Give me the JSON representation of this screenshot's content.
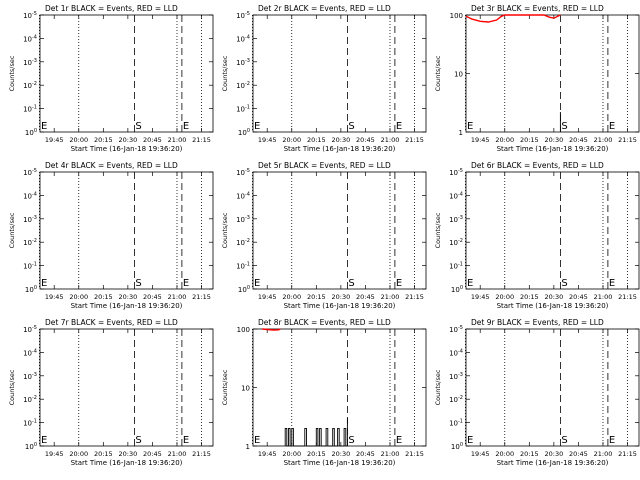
{
  "colors": {
    "black": "#000000",
    "red": "#ff0000",
    "background": "#ffffff"
  },
  "time_ticks": [
    "19:45",
    "20:00",
    "20:15",
    "20:30",
    "20:45",
    "21:00",
    "21:15"
  ],
  "panels": [
    {
      "title": "Det 1r BLACK = Events, RED = LLD",
      "ylabel": "Counts/sec",
      "xlabel": "Start Time (16-Jan-18 19:36:20)",
      "yscale": "exponent",
      "yticks": [
        {
          "base": "10",
          "exp": "0"
        },
        {
          "base": "10",
          "exp": "-1"
        },
        {
          "base": "10",
          "exp": "-2"
        },
        {
          "base": "10",
          "exp": "-3"
        },
        {
          "base": "10",
          "exp": "-4"
        },
        {
          "base": "10",
          "exp": "-5"
        }
      ],
      "markers": [
        {
          "label": "E",
          "time": "19:36"
        },
        {
          "label": "S",
          "time": "20:34"
        },
        {
          "label": "E",
          "time": "21:03"
        }
      ],
      "events": [],
      "lld": []
    },
    {
      "title": "Det 2r BLACK = Events, RED = LLD",
      "ylabel": "Counts/sec",
      "xlabel": "Start Time (16-Jan-18 19:36:20)",
      "yscale": "exponent",
      "yticks": [
        {
          "base": "10",
          "exp": "0"
        },
        {
          "base": "10",
          "exp": "-1"
        },
        {
          "base": "10",
          "exp": "-2"
        },
        {
          "base": "10",
          "exp": "-3"
        },
        {
          "base": "10",
          "exp": "-4"
        },
        {
          "base": "10",
          "exp": "-5"
        }
      ],
      "markers": [
        {
          "label": "E",
          "time": "19:36"
        },
        {
          "label": "S",
          "time": "20:34"
        },
        {
          "label": "E",
          "time": "21:03"
        }
      ],
      "events": [],
      "lld": []
    },
    {
      "title": "Det 3r BLACK = Events, RED = LLD",
      "ylabel": "Counts/sec",
      "xlabel": "Start Time (16-Jan-18 19:36:20)",
      "yscale": "log",
      "yticks": [
        {
          "base": "100",
          "exp": ""
        },
        {
          "base": "10",
          "exp": ""
        },
        {
          "base": "1",
          "exp": ""
        }
      ],
      "markers": [
        {
          "label": "E",
          "time": "19:36"
        },
        {
          "label": "S",
          "time": "20:34"
        },
        {
          "label": "E",
          "time": "21:03"
        }
      ],
      "events": [
        [
          "20:34",
          1
        ],
        [
          "20:34",
          1.6
        ],
        [
          "20:34",
          2.2
        ],
        [
          "20:34",
          1
        ]
      ],
      "lld": [
        [
          "19:36",
          95
        ],
        [
          "19:40",
          85
        ],
        [
          "19:45",
          78
        ],
        [
          "19:50",
          76
        ],
        [
          "19:55",
          82
        ],
        [
          "19:58",
          95
        ],
        [
          "20:00",
          100
        ],
        [
          "20:24",
          100
        ],
        [
          "20:27",
          92
        ],
        [
          "20:30",
          88
        ],
        [
          "20:33",
          97
        ],
        [
          "20:34",
          100
        ]
      ]
    },
    {
      "title": "Det 4r BLACK = Events, RED = LLD",
      "ylabel": "Counts/sec",
      "xlabel": "Start Time (16-Jan-18 19:36:20)",
      "yscale": "exponent",
      "yticks": [
        {
          "base": "10",
          "exp": "0"
        },
        {
          "base": "10",
          "exp": "-1"
        },
        {
          "base": "10",
          "exp": "-2"
        },
        {
          "base": "10",
          "exp": "-3"
        },
        {
          "base": "10",
          "exp": "-4"
        },
        {
          "base": "10",
          "exp": "-5"
        }
      ],
      "markers": [
        {
          "label": "E",
          "time": "19:36"
        },
        {
          "label": "S",
          "time": "20:34"
        },
        {
          "label": "E",
          "time": "21:03"
        }
      ],
      "events": [],
      "lld": []
    },
    {
      "title": "Det 5r BLACK = Events, RED = LLD",
      "ylabel": "Counts/sec",
      "xlabel": "Start Time (16-Jan-18 19:36:20)",
      "yscale": "exponent",
      "yticks": [
        {
          "base": "10",
          "exp": "0"
        },
        {
          "base": "10",
          "exp": "-1"
        },
        {
          "base": "10",
          "exp": "-2"
        },
        {
          "base": "10",
          "exp": "-3"
        },
        {
          "base": "10",
          "exp": "-4"
        },
        {
          "base": "10",
          "exp": "-5"
        }
      ],
      "markers": [
        {
          "label": "E",
          "time": "19:36"
        },
        {
          "label": "S",
          "time": "20:34"
        },
        {
          "label": "E",
          "time": "21:03"
        }
      ],
      "events": [],
      "lld": []
    },
    {
      "title": "Det 6r BLACK = Events, RED = LLD",
      "ylabel": "Counts/sec",
      "xlabel": "Start Time (16-Jan-18 19:36:20)",
      "yscale": "exponent",
      "yticks": [
        {
          "base": "10",
          "exp": "0"
        },
        {
          "base": "10",
          "exp": "-1"
        },
        {
          "base": "10",
          "exp": "-2"
        },
        {
          "base": "10",
          "exp": "-3"
        },
        {
          "base": "10",
          "exp": "-4"
        },
        {
          "base": "10",
          "exp": "-5"
        }
      ],
      "markers": [
        {
          "label": "E",
          "time": "19:36"
        },
        {
          "label": "S",
          "time": "20:34"
        },
        {
          "label": "E",
          "time": "21:03"
        }
      ],
      "events": [],
      "lld": []
    },
    {
      "title": "Det 7r BLACK = Events, RED = LLD",
      "ylabel": "Counts/sec",
      "xlabel": "Start Time (16-Jan-18 19:36:20)",
      "yscale": "exponent",
      "yticks": [
        {
          "base": "10",
          "exp": "0"
        },
        {
          "base": "10",
          "exp": "-1"
        },
        {
          "base": "10",
          "exp": "-2"
        },
        {
          "base": "10",
          "exp": "-3"
        },
        {
          "base": "10",
          "exp": "-4"
        },
        {
          "base": "10",
          "exp": "-5"
        }
      ],
      "markers": [
        {
          "label": "E",
          "time": "19:36"
        },
        {
          "label": "S",
          "time": "20:34"
        },
        {
          "label": "E",
          "time": "21:03"
        }
      ],
      "events": [],
      "lld": []
    },
    {
      "title": "Det 8r BLACK = Events, RED = LLD",
      "ylabel": "Counts/sec",
      "xlabel": "Start Time (16-Jan-18 19:36:20)",
      "yscale": "log",
      "yticks": [
        {
          "base": "100",
          "exp": ""
        },
        {
          "base": "10",
          "exp": ""
        },
        {
          "base": "1",
          "exp": ""
        }
      ],
      "markers": [
        {
          "label": "E",
          "time": "19:36"
        },
        {
          "label": "S",
          "time": "20:34"
        },
        {
          "label": "E",
          "time": "21:03"
        }
      ],
      "events": [
        [
          "19:56",
          1
        ],
        [
          "19:56",
          2
        ],
        [
          "19:57",
          2
        ],
        [
          "19:57",
          1
        ],
        [
          "19:58",
          1
        ],
        [
          "19:58",
          2
        ],
        [
          "19:59",
          2
        ],
        [
          "19:59",
          1
        ],
        [
          "20:00",
          1
        ],
        [
          "20:00",
          2
        ],
        [
          "20:01",
          2
        ],
        [
          "20:01",
          1
        ],
        [
          "20:08",
          1
        ],
        [
          "20:08",
          2
        ],
        [
          "20:09",
          2
        ],
        [
          "20:09",
          1
        ],
        [
          "20:15",
          1
        ],
        [
          "20:15",
          2
        ],
        [
          "20:16",
          2
        ],
        [
          "20:16",
          1
        ],
        [
          "20:17",
          1
        ],
        [
          "20:17",
          2
        ],
        [
          "20:18",
          2
        ],
        [
          "20:18",
          1
        ],
        [
          "20:21",
          1
        ],
        [
          "20:21",
          2
        ],
        [
          "20:22",
          2
        ],
        [
          "20:22",
          1
        ],
        [
          "20:25",
          1
        ],
        [
          "20:25",
          2
        ],
        [
          "20:26",
          2
        ],
        [
          "20:26",
          1
        ],
        [
          "20:28",
          1
        ],
        [
          "20:28",
          2
        ],
        [
          "20:29",
          2
        ],
        [
          "20:29",
          1
        ],
        [
          "20:32",
          1
        ],
        [
          "20:32",
          2
        ],
        [
          "20:33",
          2
        ],
        [
          "20:33",
          1
        ],
        [
          "20:34",
          1
        ],
        [
          "20:34",
          3
        ]
      ],
      "lld": [
        [
          "19:42",
          100
        ],
        [
          "19:45",
          98
        ],
        [
          "19:49",
          96
        ],
        [
          "19:52",
          97
        ],
        [
          "19:53",
          100
        ]
      ]
    },
    {
      "title": "Det 9r BLACK = Events, RED = LLD",
      "ylabel": "Counts/sec",
      "xlabel": "Start Time (16-Jan-18 19:36:20)",
      "yscale": "exponent",
      "yticks": [
        {
          "base": "10",
          "exp": "0"
        },
        {
          "base": "10",
          "exp": "-1"
        },
        {
          "base": "10",
          "exp": "-2"
        },
        {
          "base": "10",
          "exp": "-3"
        },
        {
          "base": "10",
          "exp": "-4"
        },
        {
          "base": "10",
          "exp": "-5"
        }
      ],
      "markers": [
        {
          "label": "E",
          "time": "19:36"
        },
        {
          "label": "S",
          "time": "20:34"
        },
        {
          "label": "E",
          "time": "21:03"
        }
      ],
      "events": [],
      "lld": []
    }
  ],
  "chart_data": [
    {
      "type": "line",
      "title": "Det 1r BLACK = Events, RED = LLD",
      "xlabel": "Start Time (16-Jan-18 19:36:20)",
      "ylabel": "Counts/sec",
      "series": [
        {
          "name": "Events",
          "points": []
        },
        {
          "name": "LLD",
          "points": []
        }
      ]
    },
    {
      "type": "line",
      "title": "Det 2r BLACK = Events, RED = LLD",
      "xlabel": "Start Time (16-Jan-18 19:36:20)",
      "ylabel": "Counts/sec",
      "series": [
        {
          "name": "Events",
          "points": []
        },
        {
          "name": "LLD",
          "points": []
        }
      ]
    },
    {
      "type": "line",
      "title": "Det 3r BLACK = Events, RED = LLD",
      "xlabel": "Start Time (16-Jan-18 19:36:20)",
      "ylabel": "Counts/sec",
      "ylim": [
        1,
        100
      ],
      "series": [
        {
          "name": "Events",
          "points": [
            [
              "20:34",
              1
            ],
            [
              "20:34",
              2.2
            ]
          ]
        },
        {
          "name": "LLD",
          "points": [
            [
              "19:36",
              95
            ],
            [
              "19:45",
              78
            ],
            [
              "19:50",
              76
            ],
            [
              "19:58",
              95
            ],
            [
              "20:00",
              100
            ],
            [
              "20:24",
              100
            ],
            [
              "20:30",
              88
            ],
            [
              "20:34",
              100
            ]
          ]
        }
      ]
    },
    {
      "type": "line",
      "title": "Det 4r BLACK = Events, RED = LLD",
      "xlabel": "Start Time (16-Jan-18 19:36:20)",
      "ylabel": "Counts/sec",
      "series": [
        {
          "name": "Events",
          "points": []
        },
        {
          "name": "LLD",
          "points": []
        }
      ]
    },
    {
      "type": "line",
      "title": "Det 5r BLACK = Events, RED = LLD",
      "xlabel": "Start Time (16-Jan-18 19:36:20)",
      "ylabel": "Counts/sec",
      "series": [
        {
          "name": "Events",
          "points": []
        },
        {
          "name": "LLD",
          "points": []
        }
      ]
    },
    {
      "type": "line",
      "title": "Det 6r BLACK = Events, RED = LLD",
      "xlabel": "Start Time (16-Jan-18 19:36:20)",
      "ylabel": "Counts/sec",
      "series": [
        {
          "name": "Events",
          "points": []
        },
        {
          "name": "LLD",
          "points": []
        }
      ]
    },
    {
      "type": "line",
      "title": "Det 7r BLACK = Events, RED = LLD",
      "xlabel": "Start Time (16-Jan-18 19:36:20)",
      "ylabel": "Counts/sec",
      "series": [
        {
          "name": "Events",
          "points": []
        },
        {
          "name": "LLD",
          "points": []
        }
      ]
    },
    {
      "type": "line",
      "title": "Det 8r BLACK = Events, RED = LLD",
      "xlabel": "Start Time (16-Jan-18 19:36:20)",
      "ylabel": "Counts/sec",
      "ylim": [
        1,
        100
      ],
      "series": [
        {
          "name": "Events",
          "points": [
            [
              "19:56",
              2
            ],
            [
              "20:00",
              2
            ],
            [
              "20:08",
              2
            ],
            [
              "20:16",
              2
            ],
            [
              "20:21",
              2
            ],
            [
              "20:25",
              2
            ],
            [
              "20:28",
              2
            ],
            [
              "20:32",
              2
            ],
            [
              "20:34",
              3
            ]
          ]
        },
        {
          "name": "LLD",
          "points": [
            [
              "19:42",
              100
            ],
            [
              "19:49",
              96
            ],
            [
              "19:53",
              100
            ]
          ]
        }
      ]
    },
    {
      "type": "line",
      "title": "Det 9r BLACK = Events, RED = LLD",
      "xlabel": "Start Time (16-Jan-18 19:36:20)",
      "ylabel": "Counts/sec",
      "series": [
        {
          "name": "Events",
          "points": []
        },
        {
          "name": "LLD",
          "points": []
        }
      ]
    }
  ]
}
